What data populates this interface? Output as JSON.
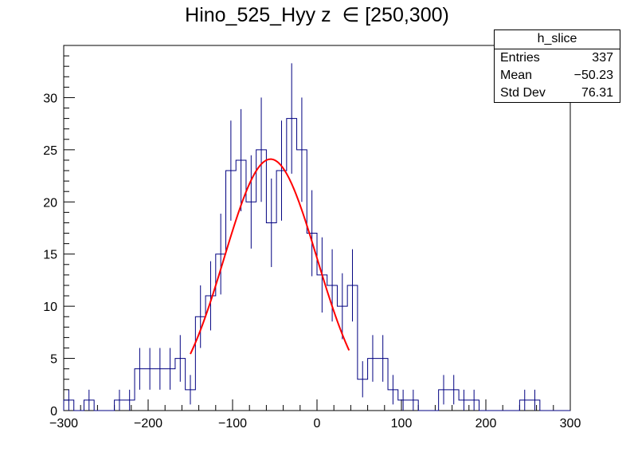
{
  "chart_data": {
    "type": "histogram",
    "title": "Hino_525_Hyy z  ∈ [250,300)",
    "xlim": [
      -300,
      300
    ],
    "ylim": [
      0,
      35
    ],
    "x_ticks": [
      -300,
      -200,
      -100,
      0,
      100,
      200,
      300
    ],
    "x_tick_labels": [
      "−300",
      "−200",
      "−100",
      "0",
      "100",
      "200",
      "300"
    ],
    "y_ticks": [
      0,
      5,
      10,
      15,
      20,
      25,
      30
    ],
    "bin_width": 12,
    "bins_low_edges": [
      -300,
      -288,
      -276,
      -264,
      -252,
      -240,
      -228,
      -216,
      -204,
      -192,
      -180,
      -168,
      -156,
      -144,
      -132,
      -120,
      -108,
      -96,
      -84,
      -72,
      -60,
      -48,
      -36,
      -24,
      -12,
      0,
      12,
      24,
      36,
      48,
      60,
      72,
      84,
      96,
      108,
      120,
      132,
      144,
      156,
      168,
      180,
      192,
      204,
      216,
      228,
      240,
      252,
      264,
      276,
      288
    ],
    "counts": [
      1,
      0,
      1,
      0,
      0,
      1,
      1,
      4,
      4,
      4,
      4,
      5,
      2,
      9,
      11,
      15,
      23,
      24,
      20,
      25,
      18,
      23,
      28,
      25,
      17,
      13,
      12,
      10,
      12,
      3,
      5,
      5,
      2,
      1,
      1,
      0,
      0,
      2,
      2,
      1,
      1,
      0,
      0,
      0,
      0,
      1,
      1,
      0,
      0,
      0
    ],
    "histogram_color": "#000080",
    "fit": {
      "type": "gaussian",
      "amplitude": 24.1,
      "mean": -55,
      "sigma": 55,
      "x_range": [
        -150,
        38
      ],
      "color": "#ff0000"
    },
    "stats_box": {
      "name": "h_slice",
      "entries_label": "Entries",
      "entries_value": "337",
      "mean_label": "Mean",
      "mean_value": "−50.23",
      "stddev_label": "Std Dev",
      "stddev_value": "76.31"
    },
    "grid": false
  }
}
